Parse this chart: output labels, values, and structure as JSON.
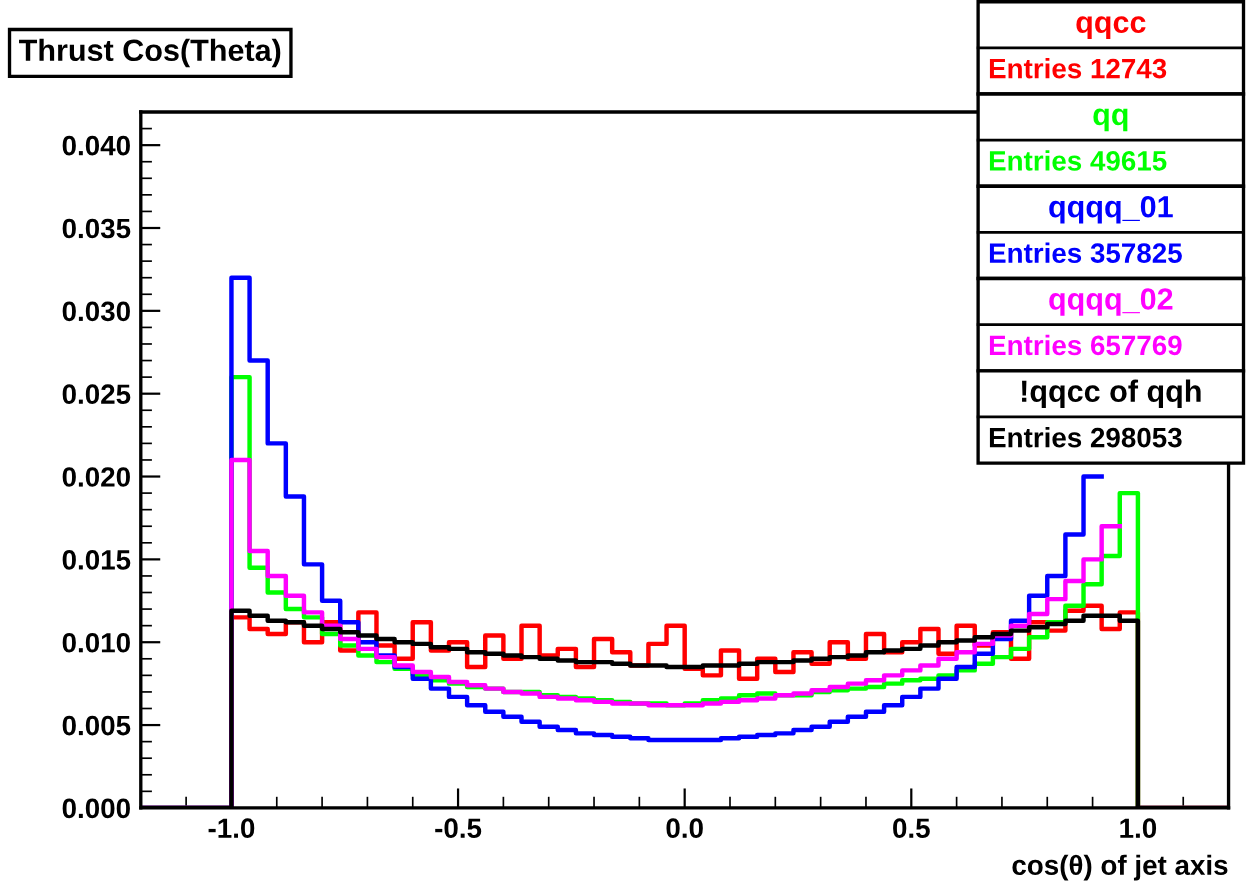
{
  "chart_data": {
    "type": "step",
    "title": "Thrust Cos(Theta)",
    "xlabel": "cos(θ) of jet axis",
    "x": [
      -1.2,
      -1.0,
      -0.96,
      -0.92,
      -0.88,
      -0.84,
      -0.8,
      -0.76,
      -0.72,
      -0.68,
      -0.64,
      -0.6,
      -0.56,
      -0.52,
      -0.48,
      -0.44,
      -0.4,
      -0.36,
      -0.32,
      -0.28,
      -0.24,
      -0.2,
      -0.16,
      -0.12,
      -0.08,
      -0.04,
      0.0,
      0.04,
      0.08,
      0.12,
      0.16,
      0.2,
      0.24,
      0.28,
      0.32,
      0.36,
      0.4,
      0.44,
      0.48,
      0.52,
      0.56,
      0.6,
      0.64,
      0.68,
      0.72,
      0.76,
      0.8,
      0.84,
      0.88,
      0.92,
      0.96,
      1.0,
      1.2
    ],
    "series": [
      {
        "name": "qqcc",
        "color": "#ff0000",
        "values": [
          0,
          0.0115,
          0.0108,
          0.0105,
          0.0112,
          0.01,
          0.0112,
          0.0095,
          0.0118,
          0.0098,
          0.009,
          0.0112,
          0.0095,
          0.01,
          0.0085,
          0.0104,
          0.009,
          0.011,
          0.0092,
          0.0096,
          0.0085,
          0.0102,
          0.0094,
          0.0086,
          0.0099,
          0.011,
          0.0084,
          0.008,
          0.0095,
          0.0078,
          0.009,
          0.0082,
          0.0094,
          0.0087,
          0.01,
          0.009,
          0.0105,
          0.0094,
          0.01,
          0.0108,
          0.0093,
          0.011,
          0.0098,
          0.0106,
          0.009,
          0.0112,
          0.0107,
          0.0119,
          0.0122,
          0.0108,
          0.0118,
          0,
          0
        ]
      },
      {
        "name": "qq",
        "color": "#00ff00",
        "values": [
          0,
          0.026,
          0.0145,
          0.013,
          0.012,
          0.0115,
          0.0105,
          0.0098,
          0.0092,
          0.0088,
          0.0084,
          0.008,
          0.0077,
          0.0075,
          0.0073,
          0.0072,
          0.007,
          0.007,
          0.0068,
          0.0067,
          0.0066,
          0.0065,
          0.0064,
          0.0063,
          0.0063,
          0.0062,
          0.0063,
          0.0065,
          0.0066,
          0.0068,
          0.0069,
          0.0068,
          0.0068,
          0.007,
          0.0071,
          0.0072,
          0.0073,
          0.0075,
          0.0077,
          0.0078,
          0.008,
          0.0083,
          0.0087,
          0.0091,
          0.0096,
          0.0103,
          0.0112,
          0.0122,
          0.0135,
          0.0152,
          0.019,
          0,
          0
        ]
      },
      {
        "name": "qqqq_01",
        "color": "#0000ff",
        "x": [
          -1.2,
          -1.0,
          -0.96,
          -0.92,
          -0.88,
          -0.84,
          -0.8,
          -0.76,
          -0.72,
          -0.68,
          -0.64,
          -0.6,
          -0.56,
          -0.52,
          -0.48,
          -0.44,
          -0.4,
          -0.36,
          -0.32,
          -0.28,
          -0.24,
          -0.2,
          -0.16,
          -0.12,
          -0.08,
          -0.04,
          0.0,
          0.04,
          0.08,
          0.12,
          0.16,
          0.2,
          0.24,
          0.28,
          0.32,
          0.36,
          0.4,
          0.44,
          0.48,
          0.52,
          0.56,
          0.6,
          0.64,
          0.68,
          0.72,
          0.76,
          0.8,
          0.84,
          0.88,
          0.92
        ],
        "values": [
          0,
          0.032,
          0.027,
          0.022,
          0.0188,
          0.0147,
          0.0125,
          0.0112,
          0.01,
          0.0092,
          0.0085,
          0.0078,
          0.0072,
          0.0067,
          0.0062,
          0.0058,
          0.0055,
          0.0052,
          0.0049,
          0.0047,
          0.0045,
          0.0044,
          0.0043,
          0.0042,
          0.0041,
          0.0041,
          0.0041,
          0.0041,
          0.0042,
          0.0043,
          0.0044,
          0.0045,
          0.0047,
          0.0049,
          0.0052,
          0.0055,
          0.0058,
          0.0062,
          0.0067,
          0.0072,
          0.0078,
          0.0085,
          0.0093,
          0.0102,
          0.0113,
          0.0128,
          0.014,
          0.0165,
          0.02,
          0.02
        ]
      },
      {
        "name": "qqqq_02",
        "color": "#ff00ff",
        "values": [
          0,
          0.021,
          0.0155,
          0.014,
          0.0128,
          0.0118,
          0.011,
          0.0102,
          0.0096,
          0.0091,
          0.0086,
          0.0082,
          0.0079,
          0.0076,
          0.0074,
          0.0072,
          0.007,
          0.0069,
          0.0067,
          0.0066,
          0.0065,
          0.0064,
          0.0063,
          0.0063,
          0.0062,
          0.0062,
          0.0062,
          0.0063,
          0.0064,
          0.0065,
          0.0066,
          0.0068,
          0.0069,
          0.0071,
          0.0073,
          0.0075,
          0.0077,
          0.008,
          0.0083,
          0.0086,
          0.009,
          0.0094,
          0.0099,
          0.0104,
          0.011,
          0.0117,
          0.0126,
          0.0137,
          0.015,
          0.017,
          null,
          0,
          0
        ]
      },
      {
        "name": "!qqcc of qqh",
        "color": "#000000",
        "values": [
          0,
          0.0119,
          0.0116,
          0.0113,
          0.0112,
          0.011,
          0.0108,
          0.0106,
          0.0104,
          0.0102,
          0.01,
          0.0099,
          0.0097,
          0.0096,
          0.0094,
          0.0093,
          0.0092,
          0.0091,
          0.009,
          0.0089,
          0.0088,
          0.0088,
          0.0087,
          0.0086,
          0.0086,
          0.0085,
          0.0085,
          0.0086,
          0.0086,
          0.0087,
          0.0088,
          0.0088,
          0.0089,
          0.009,
          0.0091,
          0.0092,
          0.0094,
          0.0095,
          0.0096,
          0.0098,
          0.01,
          0.0101,
          0.0103,
          0.0105,
          0.0107,
          0.0109,
          0.0111,
          0.0113,
          0.0116,
          0.0116,
          0.0113,
          0,
          0
        ]
      }
    ],
    "annotations": [
      "Entries 12743",
      "Entries 49615",
      "Entries 357825",
      "Entries 657769",
      "Entries 298053"
    ],
    "xlim": [
      -1.2,
      1.2
    ],
    "xticks": [
      {
        "value": -1.0,
        "label": "-1.0"
      },
      {
        "value": -0.5,
        "label": "-0.5"
      },
      {
        "value": 0.0,
        "label": "0.0"
      },
      {
        "value": 0.5,
        "label": "0.5"
      },
      {
        "value": 1.0,
        "label": "1.0"
      }
    ],
    "ylim": [
      0,
      0.042
    ],
    "yticks": [
      {
        "value": 0.0,
        "label": "0.000"
      },
      {
        "value": 0.005,
        "label": "0.005"
      },
      {
        "value": 0.01,
        "label": "0.010"
      },
      {
        "value": 0.015,
        "label": "0.015"
      },
      {
        "value": 0.02,
        "label": "0.020"
      },
      {
        "value": 0.025,
        "label": "0.025"
      },
      {
        "value": 0.03,
        "label": "0.030"
      },
      {
        "value": 0.035,
        "label": "0.035"
      },
      {
        "value": 0.04,
        "label": "0.040"
      }
    ],
    "legend": "top right",
    "grid": false
  }
}
